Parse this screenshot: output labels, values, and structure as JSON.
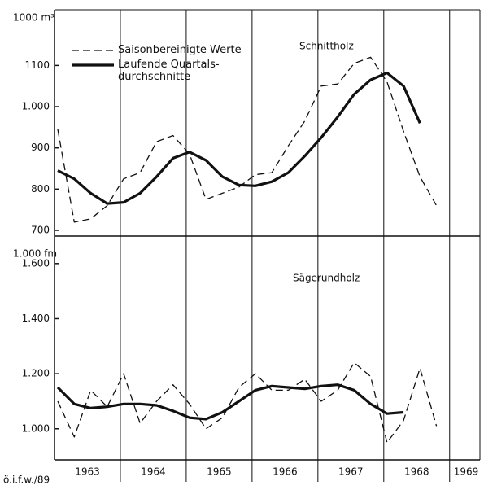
{
  "chart_data": [
    {
      "type": "line",
      "title": "Schnittholz",
      "ylabel": "1000 m³",
      "x": [
        1963.05,
        1963.3,
        1963.55,
        1963.8,
        1964.05,
        1964.3,
        1964.55,
        1964.8,
        1965.05,
        1965.3,
        1965.55,
        1965.8,
        1966.05,
        1966.3,
        1966.55,
        1966.8,
        1967.05,
        1967.3,
        1967.55,
        1967.8,
        1968.05,
        1968.3,
        1968.55,
        1968.8
      ],
      "series": [
        {
          "name": "Saisonbereinigte Werte",
          "color": "#111111",
          "dashed": true,
          "values": [
            945,
            720,
            728,
            760,
            825,
            840,
            915,
            930,
            885,
            775,
            790,
            805,
            835,
            840,
            905,
            965,
            1050,
            1055,
            1105,
            1120,
            1060,
            940,
            830,
            760
          ]
        },
        {
          "name": "Laufende Quartals-\ndurchschnitte",
          "color": "#111111",
          "dashed": false,
          "values": [
            845,
            825,
            790,
            765,
            768,
            790,
            830,
            875,
            890,
            870,
            830,
            810,
            808,
            818,
            840,
            880,
            925,
            975,
            1030,
            1065,
            1082,
            1050,
            960,
            null
          ]
        }
      ],
      "xlim": [
        1963,
        1969.46
      ],
      "xgrid": [
        1964,
        1965,
        1966,
        1967,
        1968,
        1969
      ],
      "ylim": [
        700,
        1235
      ],
      "yticks": [
        700,
        800,
        900,
        {
          "value": 1000,
          "label": "1.000"
        },
        1100
      ]
    },
    {
      "type": "line",
      "title": "Sägerundholz",
      "ylabel": "1.000 fm",
      "note": "ö.i.f.w./89",
      "x": [
        1963.05,
        1963.3,
        1963.55,
        1963.8,
        1964.05,
        1964.3,
        1964.55,
        1964.8,
        1965.05,
        1965.3,
        1965.55,
        1965.8,
        1966.05,
        1966.3,
        1966.55,
        1966.8,
        1967.05,
        1967.3,
        1967.55,
        1967.8,
        1968.05,
        1968.3,
        1968.55,
        1968.8
      ],
      "series": [
        {
          "color": "#111111",
          "dashed": true,
          "values": [
            1100,
            970,
            1140,
            1080,
            1200,
            1020,
            1100,
            1160,
            1090,
            1000,
            1040,
            1150,
            1200,
            1140,
            1140,
            1180,
            1100,
            1140,
            1240,
            1190,
            950,
            1030,
            1220,
            1010
          ]
        },
        {
          "color": "#111111",
          "dashed": false,
          "values": [
            1150,
            1090,
            1075,
            1080,
            1090,
            1090,
            1085,
            1065,
            1040,
            1035,
            1060,
            1100,
            1140,
            1155,
            1150,
            1145,
            1155,
            1160,
            1140,
            1090,
            1055,
            1060,
            null,
            null
          ]
        }
      ],
      "xlim": [
        1963,
        1969.46
      ],
      "xgrid": [
        1964,
        1965,
        1966,
        1967,
        1968,
        1969
      ],
      "xticks": [
        {
          "value": 1963.5,
          "label": "1963"
        },
        {
          "value": 1964.5,
          "label": "1964"
        },
        {
          "value": 1965.5,
          "label": "1965"
        },
        {
          "value": 1966.5,
          "label": "1966"
        },
        {
          "value": 1967.5,
          "label": "1967"
        },
        {
          "value": 1968.5,
          "label": "1968"
        },
        {
          "value": 1969.25,
          "label": "1969"
        }
      ],
      "ylim": [
        887,
        1700
      ],
      "yticks": [
        {
          "value": 1000,
          "label": "1.000"
        },
        {
          "value": 1200,
          "label": "1.200"
        },
        {
          "value": 1400,
          "label": "1.400"
        },
        {
          "value": 1600,
          "label": "1.600"
        }
      ]
    }
  ]
}
